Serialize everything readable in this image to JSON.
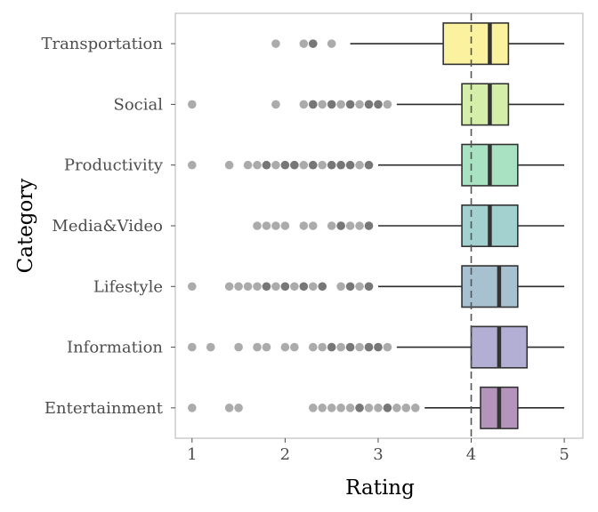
{
  "chart_data": {
    "type": "boxplot",
    "orientation": "horizontal",
    "xlabel": "Rating",
    "ylabel": "Category",
    "xlim": [
      0.82,
      5.2
    ],
    "xticks": [
      1,
      2,
      3,
      4,
      5
    ],
    "reference_line": {
      "x": 4,
      "style": "dashed"
    },
    "grid": false,
    "categories": [
      "Transportation",
      "Social",
      "Productivity",
      "Media&Video",
      "Lifestyle",
      "Information",
      "Entertainment"
    ],
    "boxes": [
      {
        "category": "Transportation",
        "whisker_low": 2.7,
        "q1": 3.7,
        "median": 4.2,
        "q3": 4.4,
        "whisker_high": 5.0,
        "color": "#fbf2a0",
        "outliers": [
          1.9,
          2.2,
          2.3,
          2.3,
          2.5
        ]
      },
      {
        "category": "Social",
        "whisker_low": 3.2,
        "q1": 3.9,
        "median": 4.2,
        "q3": 4.4,
        "whisker_high": 5.0,
        "color": "#d5efab",
        "outliers": [
          1.0,
          1.9,
          2.2,
          2.3,
          2.3,
          2.4,
          2.5,
          2.5,
          2.6,
          2.7,
          2.7,
          2.8,
          2.9,
          2.9,
          3.0,
          3.0,
          3.1
        ]
      },
      {
        "category": "Productivity",
        "whisker_low": 3.0,
        "q1": 3.9,
        "median": 4.2,
        "q3": 4.5,
        "whisker_high": 5.0,
        "color": "#a9e2c3",
        "outliers": [
          1.0,
          1.4,
          1.6,
          1.7,
          1.8,
          1.8,
          1.9,
          2.0,
          2.0,
          2.1,
          2.1,
          2.2,
          2.3,
          2.3,
          2.4,
          2.5,
          2.5,
          2.6,
          2.6,
          2.7,
          2.7,
          2.8,
          2.9,
          2.9
        ]
      },
      {
        "category": "Media&Video",
        "whisker_low": 3.0,
        "q1": 3.9,
        "median": 4.2,
        "q3": 4.5,
        "whisker_high": 5.0,
        "color": "#a3d1cf",
        "outliers": [
          1.7,
          1.8,
          1.9,
          2.0,
          2.2,
          2.3,
          2.5,
          2.6,
          2.6,
          2.7,
          2.8,
          2.9,
          2.9
        ]
      },
      {
        "category": "Lifestyle",
        "whisker_low": 3.0,
        "q1": 3.9,
        "median": 4.3,
        "q3": 4.5,
        "whisker_high": 5.0,
        "color": "#a7c1d0",
        "outliers": [
          1.0,
          1.4,
          1.5,
          1.6,
          1.7,
          1.8,
          1.8,
          1.9,
          2.0,
          2.0,
          2.1,
          2.2,
          2.2,
          2.3,
          2.4,
          2.4,
          2.6,
          2.7,
          2.7,
          2.8,
          2.9,
          2.9
        ]
      },
      {
        "category": "Information",
        "whisker_low": 3.2,
        "q1": 4.0,
        "median": 4.3,
        "q3": 4.6,
        "whisker_high": 5.0,
        "color": "#b3aed3",
        "outliers": [
          1.0,
          1.2,
          1.5,
          1.7,
          1.8,
          2.0,
          2.1,
          2.3,
          2.4,
          2.5,
          2.5,
          2.6,
          2.7,
          2.7,
          2.8,
          2.9,
          2.9,
          3.0,
          3.0,
          3.1
        ]
      },
      {
        "category": "Entertainment",
        "whisker_low": 3.5,
        "q1": 4.1,
        "median": 4.3,
        "q3": 4.5,
        "whisker_high": 5.0,
        "color": "#b494bb",
        "outliers": [
          1.0,
          1.4,
          1.5,
          2.3,
          2.4,
          2.5,
          2.6,
          2.7,
          2.8,
          2.8,
          2.9,
          3.0,
          3.1,
          3.1,
          3.2,
          3.3,
          3.4
        ]
      }
    ]
  }
}
